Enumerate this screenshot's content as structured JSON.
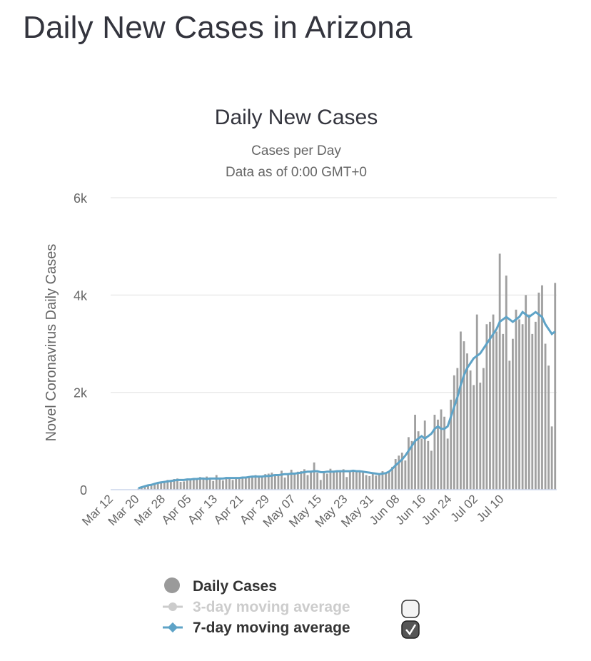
{
  "page": {
    "title": "Daily New Cases in Arizona"
  },
  "chart_data": {
    "type": "bar",
    "title": "Daily New Cases",
    "subtitle": "Cases per Day",
    "subtitle2": "Data as of 0:00 GMT+0",
    "ylabel": "Novel Coronavirus Daily Cases",
    "xlabel": "",
    "ylim": [
      0,
      6000
    ],
    "yticks": [
      0,
      2000,
      4000,
      6000
    ],
    "ytick_labels": [
      "0",
      "2k",
      "4k",
      "6k"
    ],
    "xtick_labels": [
      "Mar 12",
      "Mar 20",
      "Mar 28",
      "Apr 05",
      "Apr 13",
      "Apr 21",
      "Apr 29",
      "May 07",
      "May 15",
      "May 23",
      "May 31",
      "Jun 08",
      "Jun 16",
      "Jun 24",
      "Jul 02",
      "Jul 10"
    ],
    "categories_start": "Mar 12",
    "grid": true,
    "legend_position": "bottom",
    "colors": {
      "bars": "#a0a0a0",
      "avg7": "#5ea3c7",
      "avg3": "#cccccc"
    },
    "series": [
      {
        "name": "Daily Cases",
        "values": [
          0,
          0,
          0,
          0,
          0,
          0,
          0,
          0,
          20,
          40,
          60,
          80,
          100,
          110,
          130,
          150,
          170,
          200,
          180,
          220,
          230,
          160,
          170,
          190,
          210,
          220,
          240,
          260,
          250,
          270,
          250,
          180,
          300,
          230,
          190,
          260,
          240,
          200,
          220,
          230,
          250,
          270,
          260,
          280,
          300,
          250,
          270,
          320,
          330,
          350,
          300,
          320,
          390,
          250,
          300,
          410,
          330,
          370,
          380,
          420,
          300,
          360,
          560,
          350,
          200,
          380,
          330,
          430,
          370,
          380,
          400,
          420,
          260,
          380,
          400,
          360,
          390,
          350,
          300,
          280,
          340,
          290,
          320,
          380,
          350,
          360,
          470,
          630,
          700,
          760,
          600,
          1080,
          1000,
          1540,
          1200,
          1050,
          1420,
          1000,
          800,
          1540,
          1440,
          1650,
          1500,
          1050,
          1850,
          2350,
          2500,
          3250,
          3050,
          2800,
          2450,
          2150,
          3600,
          2200,
          2500,
          3400,
          3450,
          3600,
          3250,
          4850,
          3200,
          4400,
          2650,
          3100,
          3700,
          3500,
          3400,
          4000,
          3600,
          3200,
          3450,
          4050,
          4200,
          3000,
          2550,
          1300,
          4250
        ]
      },
      {
        "name": "7-day moving average",
        "values": [
          0,
          0,
          0,
          0,
          0,
          0,
          0,
          0,
          30,
          50,
          70,
          90,
          100,
          120,
          140,
          150,
          160,
          170,
          180,
          190,
          200,
          200,
          200,
          210,
          210,
          220,
          220,
          230,
          230,
          220,
          230,
          230,
          230,
          230,
          230,
          240,
          240,
          240,
          240,
          240,
          250,
          250,
          260,
          270,
          270,
          270,
          270,
          280,
          280,
          290,
          300,
          300,
          310,
          320,
          320,
          330,
          330,
          340,
          350,
          360,
          370,
          370,
          380,
          380,
          360,
          360,
          370,
          370,
          370,
          380,
          380,
          380,
          380,
          380,
          390,
          380,
          380,
          370,
          360,
          350,
          340,
          330,
          320,
          330,
          340,
          370,
          430,
          500,
          560,
          620,
          700,
          800,
          900,
          1000,
          1050,
          1100,
          1050,
          1100,
          1150,
          1250,
          1300,
          1250,
          1250,
          1300,
          1500,
          1700,
          1900,
          2150,
          2350,
          2500,
          2600,
          2700,
          2750,
          2800,
          2900,
          3000,
          3100,
          3200,
          3300,
          3450,
          3500,
          3550,
          3500,
          3450,
          3500,
          3550,
          3650,
          3600,
          3550,
          3600,
          3650,
          3600,
          3550,
          3400,
          3300,
          3200,
          3250
        ]
      }
    ],
    "legend": [
      {
        "name": "Daily Cases",
        "state": "on"
      },
      {
        "name": "3-day moving average",
        "state": "off",
        "checkbox": false
      },
      {
        "name": "7-day moving average",
        "state": "on",
        "checkbox": true
      }
    ]
  }
}
